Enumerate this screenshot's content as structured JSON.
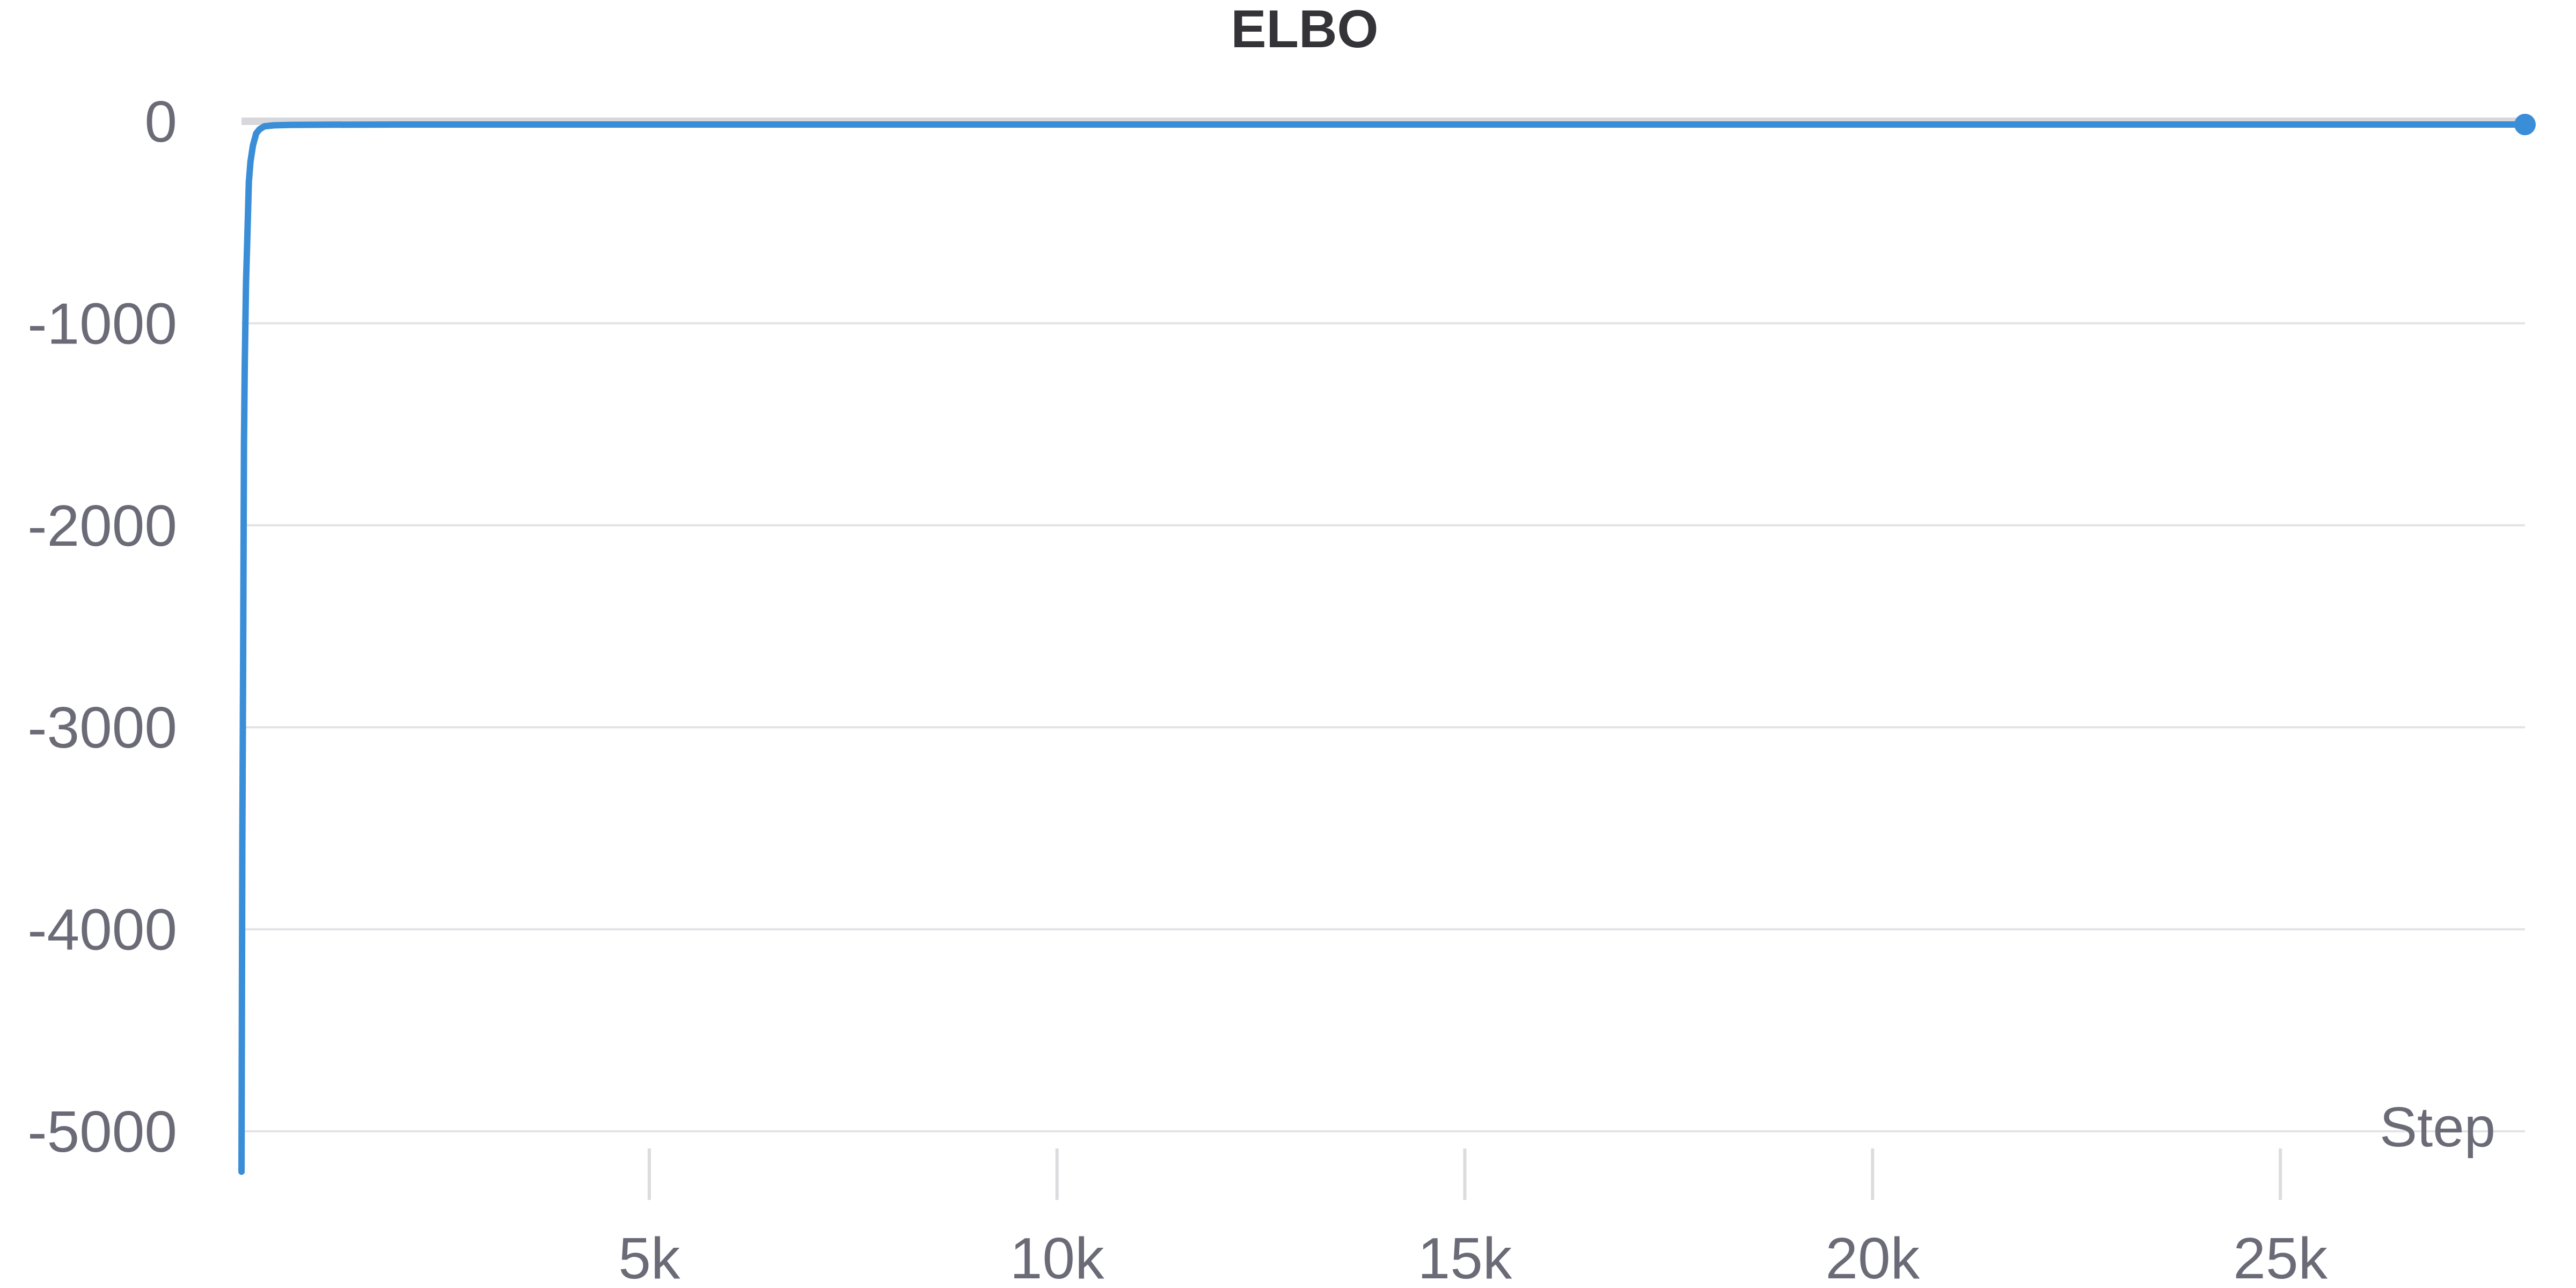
{
  "chart_data": {
    "type": "line",
    "title": "ELBO",
    "xlabel": "Step",
    "ylabel": "",
    "xlim": [
      0,
      28000
    ],
    "ylim": [
      -5000,
      0
    ],
    "x_ticks": [
      5000,
      10000,
      15000,
      20000,
      25000
    ],
    "x_tick_labels": [
      "5k",
      "10k",
      "15k",
      "20k",
      "25k"
    ],
    "y_ticks": [
      0,
      -1000,
      -2000,
      -3000,
      -4000,
      -5000
    ],
    "y_tick_labels": [
      "0",
      "-1000",
      "-2000",
      "-3000",
      "-4000",
      "-5000"
    ],
    "grid": "horizontal",
    "series": [
      {
        "color": "#3a8ed8",
        "x": [
          0,
          10,
          20,
          30,
          40,
          55,
          70,
          90,
          110,
          140,
          180,
          220,
          280,
          400,
          600,
          1000,
          2000,
          5000,
          10000,
          15000,
          20000,
          25000,
          28000
        ],
        "y": [
          -5200,
          -3600,
          -2700,
          -1600,
          -1200,
          -800,
          -600,
          -300,
          -200,
          -120,
          -60,
          -40,
          -25,
          -20,
          -18,
          -17,
          -16,
          -16,
          -16,
          -16,
          -16,
          -16,
          -16
        ]
      }
    ]
  }
}
